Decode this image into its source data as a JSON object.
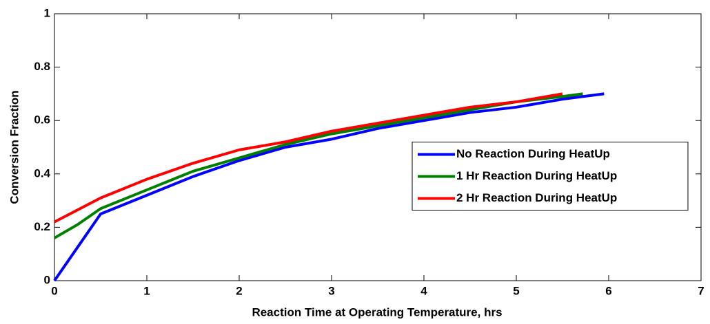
{
  "chart_data": {
    "type": "line",
    "xlabel": "Reaction Time at Operating Temperature, hrs",
    "ylabel": "Conversion Fraction",
    "xlim": [
      0,
      7
    ],
    "xticks": [
      0,
      1,
      2,
      3,
      4,
      5,
      6,
      7
    ],
    "ylim": [
      0,
      1
    ],
    "yticks": [
      0,
      0.2,
      0.4,
      0.6,
      0.8,
      1
    ],
    "grid": false,
    "legend_position": "center right",
    "series": [
      {
        "name": "No Reaction During HeatUp",
        "color": "#0000ff",
        "x": [
          0,
          0.5,
          1,
          1.5,
          2,
          2.5,
          3,
          3.5,
          4,
          4.5,
          5,
          5.5,
          5.95
        ],
        "values": [
          0,
          0.25,
          0.32,
          0.39,
          0.45,
          0.5,
          0.53,
          0.57,
          0.6,
          0.63,
          0.65,
          0.68,
          0.7
        ]
      },
      {
        "name": "1 Hr Reaction During HeatUp",
        "color": "#008000",
        "x": [
          0,
          0.25,
          0.5,
          1,
          1.5,
          2,
          2.5,
          3,
          3.5,
          4,
          4.5,
          5,
          5.5,
          5.72
        ],
        "values": [
          0.16,
          0.21,
          0.27,
          0.34,
          0.41,
          0.46,
          0.51,
          0.55,
          0.58,
          0.61,
          0.64,
          0.67,
          0.69,
          0.7
        ]
      },
      {
        "name": "2 Hr Reaction During HeatUp",
        "color": "#ff0000",
        "x": [
          0,
          0.5,
          1,
          1.5,
          2,
          2.5,
          3,
          3.5,
          4,
          4.5,
          5,
          5.5
        ],
        "values": [
          0.22,
          0.31,
          0.38,
          0.44,
          0.49,
          0.52,
          0.56,
          0.59,
          0.62,
          0.65,
          0.67,
          0.7
        ]
      }
    ]
  }
}
